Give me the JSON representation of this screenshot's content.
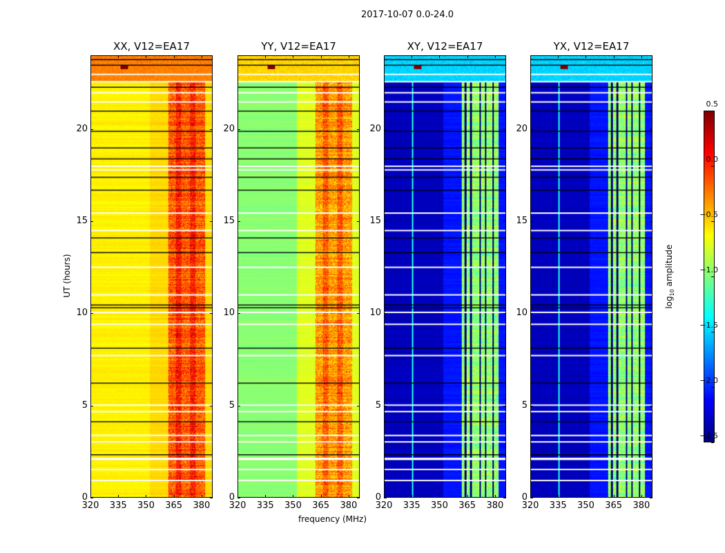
{
  "chart_data": {
    "type": "heatmap",
    "title": "2017-10-07 0.0-24.0",
    "xlabel": "frequency (MHz)",
    "ylabel": "UT (hours)",
    "xlim": [
      320,
      386
    ],
    "ylim": [
      0,
      24
    ],
    "xticks": [
      320,
      335,
      350,
      365,
      380
    ],
    "yticks": [
      0,
      5,
      10,
      15,
      20
    ],
    "panels": [
      {
        "title": "XX, V12=EA17",
        "base_low": -0.62,
        "base_mid": -0.55,
        "band_level": -0.2,
        "top_level": -0.35
      },
      {
        "title": "YY, V12=EA17",
        "base_low": -1.0,
        "base_mid": -0.75,
        "band_level": -0.4,
        "top_level": -0.6
      },
      {
        "title": "XY, V12=EA17",
        "base_low": -2.35,
        "base_mid": -2.1,
        "band_level": -1.0,
        "top_level": -1.6
      },
      {
        "title": "YX, V12=EA17",
        "base_low": -2.35,
        "base_mid": -2.1,
        "band_level": -1.0,
        "top_level": -1.6
      }
    ],
    "band_mhz": [
      362,
      382
    ],
    "flagged_white_ut": [
      0.9,
      1.5,
      2.05,
      2.1,
      3.0,
      3.35,
      4.65,
      5.0,
      7.7,
      9.4,
      10.05,
      11.0,
      12.5,
      14.5,
      15.45,
      17.8,
      18.0,
      21.5,
      22.0,
      22.6,
      23.0
    ],
    "flagged_black_ut": [
      2.3,
      4.1,
      6.2,
      8.1,
      10.3,
      10.45,
      13.3,
      14.1,
      16.7,
      17.4,
      18.4,
      19.0,
      19.9,
      21.0,
      22.3,
      23.5,
      23.8
    ],
    "colorbar": {
      "label": "log10 amplitude",
      "label_main": "log",
      "label_sub": "10",
      "label_rest": " amplitude",
      "range": [
        -2.5,
        0.5
      ],
      "ticks": [
        "0.5",
        "0.0",
        "−0.5",
        "−1.0",
        "−1.5",
        "−2.0",
        "−2.5"
      ],
      "tick_values": [
        0.5,
        0,
        -0.5,
        -1,
        -1.5,
        -2,
        -2.5
      ],
      "colormap": "jet"
    }
  }
}
